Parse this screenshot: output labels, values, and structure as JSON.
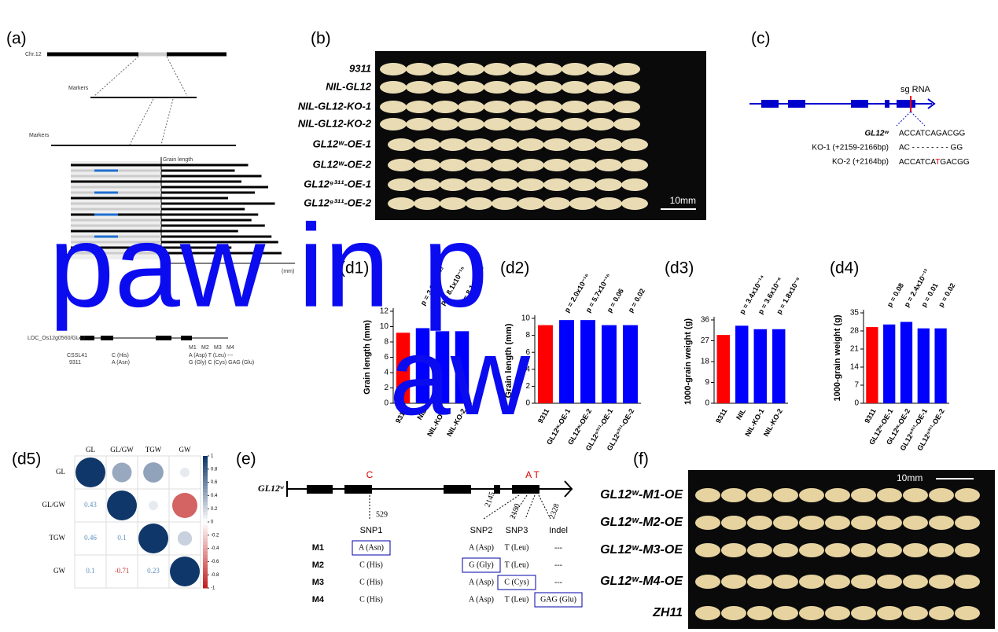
{
  "panels": {
    "a": "(a)",
    "b": "(b)",
    "c": "(c)",
    "d1": "(d1)",
    "d2": "(d2)",
    "d3": "(d3)",
    "d4": "(d4)",
    "d5": "(d5)",
    "e": "(e)",
    "f": "(f)"
  },
  "panel_a": {
    "chromosome": "Chr.12",
    "markers_1": "Markers",
    "markers_2": "Markers",
    "grain_length": "Grain length",
    "axis_unit": "(mm)",
    "gene": "LOC_Os12g0560/GL12",
    "parent_1": "CSSL41",
    "parent_2": "9311",
    "snp_1a": "C (His)",
    "snp_1b": "A (Asn)",
    "snp_2a": "A (Asp) T (Leu) ---",
    "snp_2b": "G (Gly) C (Cys) GAG (Glu)",
    "mutations": [
      "M1",
      "M2",
      "M3",
      "M4"
    ]
  },
  "panel_b": {
    "labels": [
      "9311",
      "NIL-GL12",
      "NIL-GL12-KO-1",
      "NIL-GL12-KO-2",
      "GL12ʷ-OE-1",
      "GL12ʷ-OE-2",
      "GL12⁹³¹¹-OE-1",
      "GL12⁹³¹¹-OE-2"
    ],
    "scale": "10mm"
  },
  "panel_c": {
    "sgrna": "sg RNA",
    "rows": [
      {
        "name": "GL12ʷ",
        "seq": "ACCATCAGACGG"
      },
      {
        "name": "KO-1 (+2159-2166bp)",
        "seq": "AC - - - - - - - - GG"
      },
      {
        "name": "KO-2 (+2164bp)",
        "seq": [
          "ACCATCA",
          "T",
          "GACGG"
        ]
      }
    ]
  },
  "chart_data": [
    {
      "type": "bar",
      "ylabel": "Grain length (mm)",
      "categories": [
        "9311",
        "NIL",
        "NIL-KO-1",
        "NIL-KO-2"
      ],
      "values": [
        9.2,
        9.8,
        9.4,
        9.4
      ],
      "colors": [
        "#ff0000",
        "#0000ff",
        "#0000ff",
        "#0000ff"
      ],
      "ylim": [
        0,
        12
      ],
      "yticks": [
        0,
        2,
        4,
        6,
        8,
        10,
        12
      ],
      "p_labels": [
        "p = 3.8x10⁻²³",
        "p = 8.1x10⁻¹⁵",
        "p = 8.1x10⁻¹⁵"
      ]
    },
    {
      "type": "bar",
      "ylabel": "Grain length (mm)",
      "categories": [
        "9311",
        "GL12ʷ-OE-1",
        "GL12ʷ-OE-2",
        "GL12⁹³¹¹-OE-1",
        "GL12⁹³¹¹-OE-2"
      ],
      "values": [
        9.2,
        9.8,
        9.8,
        9.2,
        9.2
      ],
      "colors": [
        "#ff0000",
        "#0000ff",
        "#0000ff",
        "#0000ff",
        "#0000ff"
      ],
      "ylim": [
        0,
        10
      ],
      "yticks": [
        0,
        2,
        4,
        6,
        8,
        10
      ],
      "p_labels": [
        "p = 2.0x10⁻¹⁶",
        "p = 5.7x10⁻¹⁶",
        "p = 0.06",
        "p = 0.02"
      ]
    },
    {
      "type": "bar",
      "ylabel": "1000-grain weight (g)",
      "categories": [
        "9311",
        "NIL",
        "NIL-KO-1",
        "NIL-KO-2"
      ],
      "values": [
        29.5,
        33.5,
        32,
        32
      ],
      "colors": [
        "#ff0000",
        "#0000ff",
        "#0000ff",
        "#0000ff"
      ],
      "ylim": [
        0,
        36
      ],
      "yticks": [
        0,
        9,
        18,
        27,
        36
      ],
      "p_labels": [
        "p = 3.4x10⁻¹⁴",
        "p = 3.6x10⁻⁸",
        "p = 1.8x10⁻⁸"
      ]
    },
    {
      "type": "bar",
      "ylabel": "1000-grain weight (g)",
      "categories": [
        "9311",
        "GL12ʷ-OE-1",
        "GL12ʷ-OE-2",
        "GL12⁹³¹¹-OE-1",
        "GL12⁹³¹¹-OE-2"
      ],
      "values": [
        29.5,
        30.5,
        31.5,
        29,
        29
      ],
      "colors": [
        "#ff0000",
        "#0000ff",
        "#0000ff",
        "#0000ff",
        "#0000ff"
      ],
      "ylim": [
        0,
        35
      ],
      "yticks": [
        0,
        7,
        14,
        21,
        28,
        35
      ],
      "p_labels": [
        "p = 0.08",
        "p = 2.4x10⁻¹²",
        "p = 0.01",
        "p = 0.02"
      ]
    },
    {
      "type": "correlation",
      "labels": [
        "GL",
        "GL/GW",
        "TGW",
        "GW"
      ],
      "matrix": [
        [
          1,
          0.43,
          0.46,
          0.1
        ],
        [
          0.43,
          1,
          0.1,
          -0.71
        ],
        [
          0.46,
          0.1,
          1,
          0.23
        ],
        [
          0.1,
          -0.71,
          0.23,
          1
        ]
      ],
      "colorbar_ticks": [
        1,
        0.8,
        0.6,
        0.4,
        0.2,
        0,
        -0.2,
        -0.4,
        -0.6,
        -0.8,
        -1
      ]
    }
  ],
  "panel_e": {
    "gene": "GL12ʷ",
    "snp_marks": [
      "C",
      "A T"
    ],
    "positions": [
      529,
      2145,
      2190,
      2328
    ],
    "headers": [
      "SNP1",
      "SNP2",
      "SNP3",
      "Indel"
    ],
    "rows": [
      [
        "M1",
        "A (Asn)",
        "A (Asp)",
        "T (Leu)",
        "---"
      ],
      [
        "M2",
        "C (His)",
        "G (Gly)",
        "T (Leu)",
        "---"
      ],
      [
        "M3",
        "C (His)",
        "A (Asp)",
        "C (Cys)",
        "---"
      ],
      [
        "M4",
        "C (His)",
        "A (Asp)",
        "T (Leu)",
        "GAG (Glu)"
      ]
    ]
  },
  "panel_f": {
    "labels": [
      "GL12ʷ-M1-OE",
      "GL12ʷ-M2-OE",
      "GL12ʷ-M3-OE",
      "GL12ʷ-M4-OE",
      "ZH11"
    ],
    "scale": "10mm"
  },
  "overlay": [
    "paw in p",
    "aw"
  ]
}
